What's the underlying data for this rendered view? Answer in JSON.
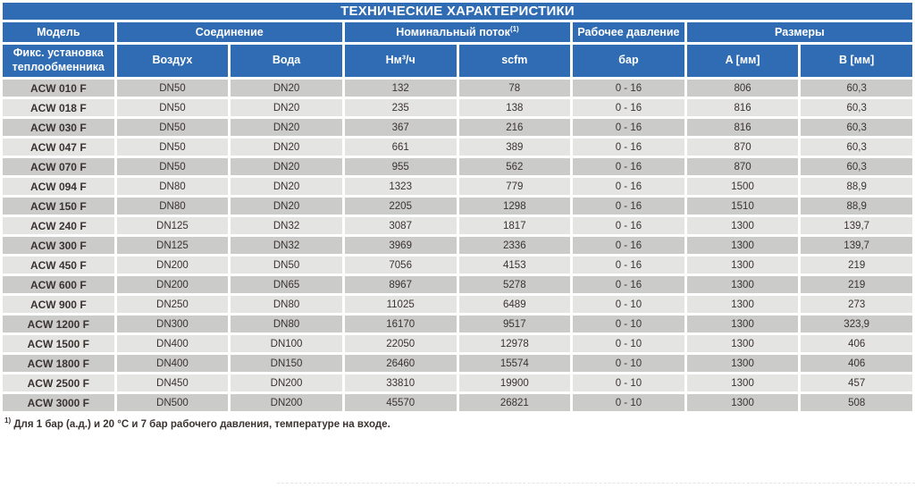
{
  "title": "ТЕХНИЧЕСКИЕ ХАРАКТЕРИСТИКИ",
  "colors": {
    "header_blue": "#2f6cb3",
    "row_dark": "#cbcbca",
    "row_light": "#e4e4e3",
    "text_dark": "#3a3330",
    "header_text": "#ffffff"
  },
  "table": {
    "group_headers": [
      {
        "label": "Модель",
        "span": 1
      },
      {
        "label": "Соединение",
        "span": 2
      },
      {
        "label": "Номинальный поток",
        "sup": "(1)",
        "span": 2
      },
      {
        "label": "Рабочее давление",
        "span": 1
      },
      {
        "label": "Размеры",
        "span": 2
      }
    ],
    "sub_headers": [
      "Фикс. установка теплообменника",
      "Воздух",
      "Вода",
      "Нм³/ч",
      "scfm",
      "бар",
      "A [мм]",
      "B [мм]"
    ],
    "rows": [
      [
        "ACW 010 F",
        "DN50",
        "DN20",
        "132",
        "78",
        "0 - 16",
        "806",
        "60,3"
      ],
      [
        "ACW 018 F",
        "DN50",
        "DN20",
        "235",
        "138",
        "0 - 16",
        "816",
        "60,3"
      ],
      [
        "ACW 030 F",
        "DN50",
        "DN20",
        "367",
        "216",
        "0 - 16",
        "816",
        "60,3"
      ],
      [
        "ACW 047 F",
        "DN50",
        "DN20",
        "661",
        "389",
        "0 - 16",
        "870",
        "60,3"
      ],
      [
        "ACW 070 F",
        "DN50",
        "DN20",
        "955",
        "562",
        "0 - 16",
        "870",
        "60,3"
      ],
      [
        "ACW 094 F",
        "DN80",
        "DN20",
        "1323",
        "779",
        "0 - 16",
        "1500",
        "88,9"
      ],
      [
        "ACW 150 F",
        "DN80",
        "DN20",
        "2205",
        "1298",
        "0 - 16",
        "1510",
        "88,9"
      ],
      [
        "ACW 240 F",
        "DN125",
        "DN32",
        "3087",
        "1817",
        "0 - 16",
        "1300",
        "139,7"
      ],
      [
        "ACW 300 F",
        "DN125",
        "DN32",
        "3969",
        "2336",
        "0 - 16",
        "1300",
        "139,7"
      ],
      [
        "ACW 450 F",
        "DN200",
        "DN50",
        "7056",
        "4153",
        "0 - 16",
        "1300",
        "219"
      ],
      [
        "ACW 600 F",
        "DN200",
        "DN65",
        "8967",
        "5278",
        "0 - 16",
        "1300",
        "219"
      ],
      [
        "ACW 900 F",
        "DN250",
        "DN80",
        "11025",
        "6489",
        "0 - 10",
        "1300",
        "273"
      ],
      [
        "ACW 1200 F",
        "DN300",
        "DN80",
        "16170",
        "9517",
        "0 - 10",
        "1300",
        "323,9"
      ],
      [
        "ACW 1500 F",
        "DN400",
        "DN100",
        "22050",
        "12978",
        "0 - 10",
        "1300",
        "406"
      ],
      [
        "ACW 1800 F",
        "DN400",
        "DN150",
        "26460",
        "15574",
        "0 - 10",
        "1300",
        "406"
      ],
      [
        "ACW 2500 F",
        "DN450",
        "DN200",
        "33810",
        "19900",
        "0 - 10",
        "1300",
        "457"
      ],
      [
        "ACW 3000 F",
        "DN500",
        "DN200",
        "45570",
        "26821",
        "0 - 10",
        "1300",
        "508"
      ]
    ]
  },
  "footnote": {
    "sup": "1)",
    "text": " Для 1 бар (а.д.) и 20 °C и 7 бар рабочего давления, температуре на входе."
  }
}
